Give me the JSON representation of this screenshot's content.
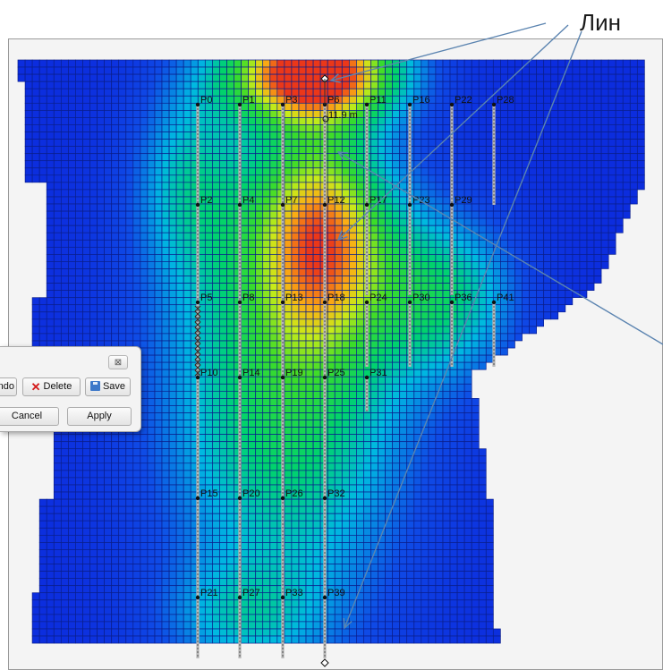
{
  "annotation": {
    "text": "Лин"
  },
  "grid": {
    "wells": [
      {
        "label": "P0",
        "col": 0,
        "row": 0
      },
      {
        "label": "P1",
        "col": 1,
        "row": 0
      },
      {
        "label": "P3",
        "col": 2,
        "row": 0
      },
      {
        "label": "P6",
        "col": 3,
        "row": 0
      },
      {
        "label": "P11",
        "col": 4,
        "row": 0
      },
      {
        "label": "P16",
        "col": 5,
        "row": 0
      },
      {
        "label": "P22",
        "col": 6,
        "row": 0
      },
      {
        "label": "P28",
        "col": 7,
        "row": 0
      },
      {
        "label": "P2",
        "col": 0,
        "row": 1
      },
      {
        "label": "P4",
        "col": 1,
        "row": 1
      },
      {
        "label": "P7",
        "col": 2,
        "row": 1
      },
      {
        "label": "P12",
        "col": 3,
        "row": 1
      },
      {
        "label": "P17",
        "col": 4,
        "row": 1
      },
      {
        "label": "P23",
        "col": 5,
        "row": 1
      },
      {
        "label": "P29",
        "col": 6,
        "row": 1
      },
      {
        "label": "P5",
        "col": 0,
        "row": 2
      },
      {
        "label": "P8",
        "col": 1,
        "row": 2
      },
      {
        "label": "P13",
        "col": 2,
        "row": 2
      },
      {
        "label": "P18",
        "col": 3,
        "row": 2
      },
      {
        "label": "P24",
        "col": 4,
        "row": 2
      },
      {
        "label": "P30",
        "col": 5,
        "row": 2
      },
      {
        "label": "P36",
        "col": 6,
        "row": 2
      },
      {
        "label": "P41",
        "col": 7,
        "row": 2
      },
      {
        "label": "P10",
        "col": 0,
        "row": 3
      },
      {
        "label": "P14",
        "col": 1,
        "row": 3
      },
      {
        "label": "P19",
        "col": 2,
        "row": 3
      },
      {
        "label": "P25",
        "col": 3,
        "row": 3
      },
      {
        "label": "P31",
        "col": 4,
        "row": 3
      },
      {
        "label": "P15",
        "col": 0,
        "row": 4
      },
      {
        "label": "P20",
        "col": 1,
        "row": 4
      },
      {
        "label": "P26",
        "col": 2,
        "row": 4
      },
      {
        "label": "P32",
        "col": 3,
        "row": 4
      },
      {
        "label": "P21",
        "col": 0,
        "row": 5
      },
      {
        "label": "P27",
        "col": 1,
        "row": 5
      },
      {
        "label": "P33",
        "col": 2,
        "row": 5
      },
      {
        "label": "P39",
        "col": 3,
        "row": 5
      }
    ],
    "selected_well": "P5",
    "measurement_label": "11.9 m"
  },
  "dialog": {
    "undo_label": "ndo",
    "delete_label": "Delete",
    "save_label": "Save",
    "cancel_label": "Cancel",
    "apply_label": "Apply",
    "close_glyph": "⊠"
  },
  "icons": {
    "delete": "x-icon",
    "save": "floppy-icon",
    "close": "close-icon"
  },
  "colors": {
    "grid_line": "#0a1e8c",
    "arrow": "#5b84b0",
    "delete_icon": "#d41a1a"
  }
}
